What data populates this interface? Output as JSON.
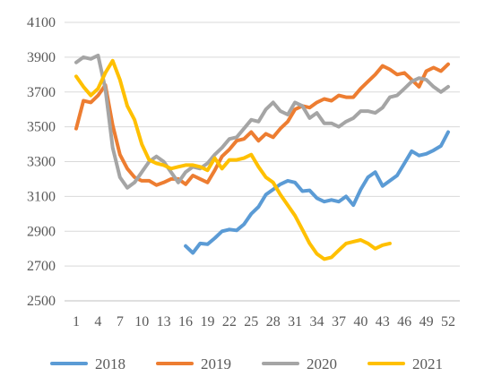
{
  "chart_data": {
    "type": "line",
    "title": "",
    "xlabel": "",
    "ylabel": "",
    "x_range": [
      1,
      52
    ],
    "ylim": [
      2500,
      4100
    ],
    "y_ticks": [
      2500,
      2700,
      2900,
      3100,
      3300,
      3500,
      3700,
      3900,
      4100
    ],
    "x_ticks": [
      1,
      4,
      7,
      10,
      13,
      16,
      19,
      22,
      25,
      28,
      31,
      34,
      37,
      40,
      43,
      46,
      49,
      52
    ],
    "grid": "horizontal",
    "legend_position": "bottom",
    "series": [
      {
        "name": "2018",
        "color": "#5b9bd5",
        "x": [
          16,
          17,
          18,
          19,
          20,
          21,
          22,
          23,
          24,
          25,
          26,
          27,
          28,
          29,
          30,
          31,
          32,
          33,
          34,
          35,
          36,
          37,
          38,
          39,
          40,
          41,
          42,
          43,
          44,
          45,
          46,
          47,
          48,
          49,
          50,
          51,
          52
        ],
        "values": [
          2815,
          2775,
          2830,
          2825,
          2860,
          2900,
          2910,
          2905,
          2940,
          3000,
          3040,
          3110,
          3140,
          3170,
          3190,
          3180,
          3130,
          3135,
          3090,
          3070,
          3080,
          3070,
          3100,
          3050,
          3140,
          3210,
          3240,
          3160,
          3190,
          3220,
          3290,
          3360,
          3335,
          3345,
          3365,
          3390,
          3470
        ]
      },
      {
        "name": "2019",
        "color": "#ed7d31",
        "x": [
          1,
          2,
          3,
          4,
          5,
          6,
          7,
          8,
          9,
          10,
          11,
          12,
          13,
          14,
          15,
          16,
          17,
          18,
          19,
          20,
          21,
          22,
          23,
          24,
          25,
          26,
          27,
          28,
          29,
          30,
          31,
          32,
          33,
          34,
          35,
          36,
          37,
          38,
          39,
          40,
          41,
          42,
          43,
          44,
          45,
          46,
          47,
          48,
          49,
          50,
          51,
          52
        ],
        "values": [
          3490,
          3650,
          3640,
          3680,
          3740,
          3510,
          3340,
          3260,
          3210,
          3190,
          3190,
          3165,
          3180,
          3200,
          3200,
          3170,
          3220,
          3200,
          3180,
          3250,
          3330,
          3370,
          3420,
          3430,
          3470,
          3420,
          3460,
          3440,
          3490,
          3530,
          3600,
          3620,
          3610,
          3640,
          3660,
          3650,
          3680,
          3670,
          3670,
          3720,
          3760,
          3800,
          3850,
          3830,
          3800,
          3810,
          3770,
          3730,
          3820,
          3840,
          3820,
          3860
        ]
      },
      {
        "name": "2020",
        "color": "#a5a5a5",
        "x": [
          1,
          2,
          3,
          4,
          5,
          6,
          7,
          8,
          9,
          10,
          11,
          12,
          13,
          14,
          15,
          16,
          17,
          18,
          19,
          20,
          21,
          22,
          23,
          24,
          25,
          26,
          27,
          28,
          29,
          30,
          31,
          32,
          33,
          34,
          35,
          36,
          37,
          38,
          39,
          40,
          41,
          42,
          43,
          44,
          45,
          46,
          47,
          48,
          49,
          50,
          51,
          52
        ],
        "values": [
          3870,
          3900,
          3890,
          3910,
          3720,
          3380,
          3210,
          3150,
          3180,
          3240,
          3300,
          3330,
          3300,
          3240,
          3180,
          3240,
          3270,
          3260,
          3290,
          3340,
          3380,
          3430,
          3440,
          3490,
          3540,
          3530,
          3600,
          3640,
          3590,
          3570,
          3640,
          3620,
          3550,
          3580,
          3520,
          3520,
          3500,
          3530,
          3550,
          3590,
          3590,
          3580,
          3610,
          3670,
          3680,
          3720,
          3760,
          3780,
          3770,
          3730,
          3700,
          3730
        ]
      },
      {
        "name": "2021",
        "color": "#ffc000",
        "x": [
          1,
          2,
          3,
          4,
          5,
          6,
          7,
          8,
          9,
          10,
          11,
          12,
          13,
          14,
          15,
          16,
          17,
          18,
          19,
          20,
          21,
          22,
          23,
          24,
          25,
          26,
          27,
          28,
          29,
          30,
          31,
          32,
          33,
          34,
          35,
          36,
          37,
          38,
          39,
          40,
          41,
          42,
          43,
          44
        ],
        "values": [
          3790,
          3730,
          3680,
          3720,
          3810,
          3880,
          3770,
          3620,
          3540,
          3400,
          3310,
          3290,
          3280,
          3260,
          3270,
          3280,
          3280,
          3270,
          3250,
          3320,
          3260,
          3310,
          3310,
          3320,
          3340,
          3270,
          3210,
          3180,
          3110,
          3050,
          2990,
          2910,
          2830,
          2770,
          2740,
          2750,
          2790,
          2830,
          2840,
          2850,
          2830,
          2800,
          2820,
          2830
        ]
      }
    ]
  }
}
